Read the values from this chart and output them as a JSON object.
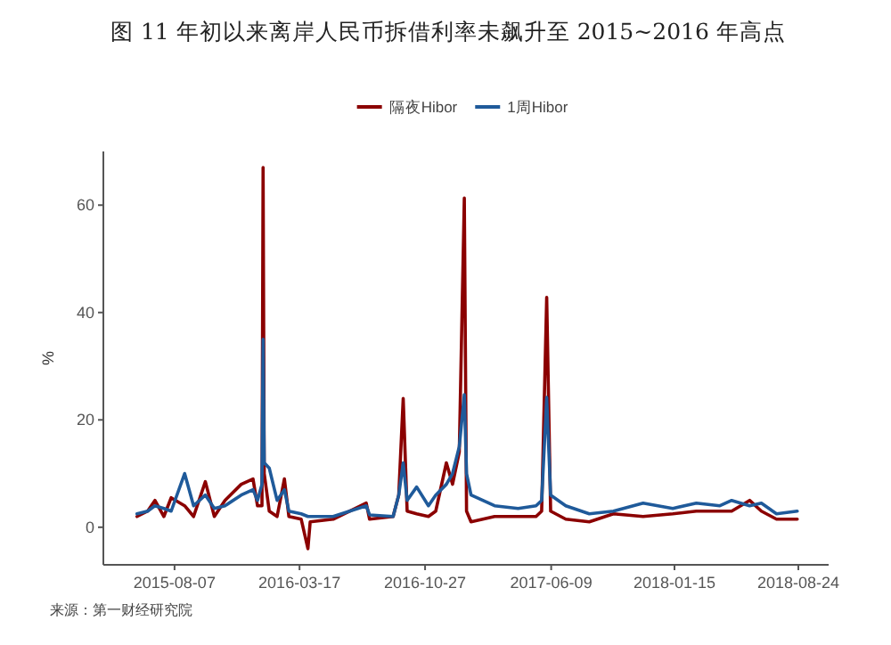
{
  "chart_data": {
    "type": "line",
    "title": "图 11 年初以来离岸人民币拆借利率未飙升至 2015~2016 年高点",
    "ylabel": "%",
    "annotations": [
      "来源：第一财经研究院"
    ],
    "x": [
      "2015-06-01",
      "2015-06-20",
      "2015-07-03",
      "2015-07-19",
      "2015-08-01",
      "2015-08-25",
      "2015-09-10",
      "2015-10-01",
      "2015-10-17",
      "2015-11-05",
      "2015-12-04",
      "2015-12-25",
      "2016-01-02",
      "2016-01-10",
      "2016-01-12",
      "2016-01-14",
      "2016-01-23",
      "2016-02-06",
      "2016-02-19",
      "2016-02-27",
      "2016-03-20",
      "2016-04-01",
      "2016-04-05",
      "2016-05-16",
      "2016-07-14",
      "2016-07-20",
      "2016-08-31",
      "2016-09-10",
      "2016-09-18",
      "2016-09-25",
      "2016-10-12",
      "2016-11-02",
      "2016-11-15",
      "2016-12-04",
      "2016-12-15",
      "2016-12-27",
      "2017-01-05",
      "2017-01-09",
      "2017-01-17",
      "2017-02-07",
      "2017-02-28",
      "2017-04-11",
      "2017-05-13",
      "2017-05-23",
      "2017-06-01",
      "2017-06-08",
      "2017-07-05",
      "2017-08-16",
      "2017-09-28",
      "2017-11-20",
      "2018-01-12",
      "2018-02-23",
      "2018-04-06",
      "2018-04-27",
      "2018-05-29",
      "2018-06-19",
      "2018-07-16",
      "2018-08-22"
    ],
    "series": [
      {
        "name": "隔夜Hibor",
        "color": "#8b0000",
        "values": [
          2,
          3,
          5,
          2,
          5.5,
          4,
          2,
          8.5,
          2,
          5,
          8,
          9,
          4,
          4,
          67,
          10,
          3,
          2,
          9,
          2,
          1.5,
          -4,
          1,
          1.5,
          4.5,
          1.5,
          2,
          6,
          24,
          3,
          2.5,
          2,
          3,
          12,
          8,
          14,
          61.3,
          3,
          1,
          1.5,
          2,
          2,
          2,
          3,
          42.8,
          3,
          1.5,
          1,
          2.5,
          2,
          2.5,
          3,
          3,
          3,
          5,
          3,
          1.5,
          1.5
        ]
      },
      {
        "name": "1周Hibor",
        "color": "#1f5a9a",
        "values": [
          2.5,
          3,
          4,
          3.5,
          3,
          10,
          4,
          6,
          3.5,
          4,
          6,
          7,
          5,
          8,
          35,
          12,
          11,
          5,
          7,
          3,
          2.5,
          2,
          2,
          2,
          4,
          2.3,
          2,
          6,
          12,
          5,
          7.5,
          4,
          6,
          8,
          10,
          15,
          24.7,
          10,
          6,
          5,
          4,
          3.5,
          4,
          5,
          24.2,
          6,
          4,
          2.5,
          3,
          4.5,
          3.5,
          4.5,
          4,
          5,
          4,
          4.5,
          2.5,
          3
        ]
      }
    ],
    "xlim": [
      "2015-04-02",
      "2018-10-17"
    ],
    "xticks": [
      "2015-08-07",
      "2016-03-17",
      "2016-10-27",
      "2017-06-09",
      "2018-01-15",
      "2018-08-24"
    ],
    "ylim": [
      -7,
      70
    ],
    "yticks": [
      0,
      20,
      40,
      60
    ],
    "grid": false,
    "legend": "top",
    "line_style": "solid",
    "marker": "none"
  }
}
